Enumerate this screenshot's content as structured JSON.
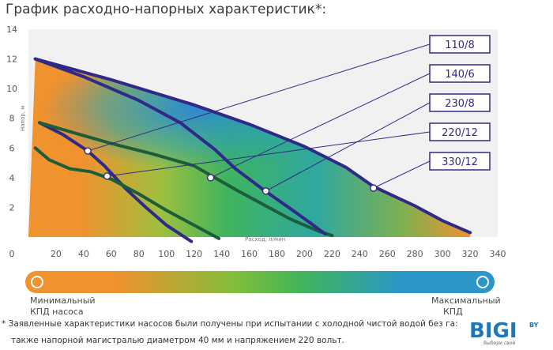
{
  "title": "График расходно-напорных характеристик*:",
  "chart_data": {
    "type": "line",
    "xlabel": "Расход, л/мин",
    "ylabel": "Напор, м",
    "xlim": [
      0,
      340
    ],
    "ylim": [
      0,
      14
    ],
    "x_ticks": [
      "20",
      "40",
      "60",
      "80",
      "100",
      "120",
      "140",
      "160",
      "180",
      "200",
      "220",
      "240",
      "260",
      "280",
      "300",
      "320",
      "340"
    ],
    "y_ticks": [
      "2",
      "4",
      "6",
      "8",
      "10",
      "12",
      "14"
    ],
    "origin_label": "0",
    "grid": false,
    "series": [
      {
        "name": "110/8",
        "color": "#2f2a87",
        "points": [
          [
            8,
            7.7
          ],
          [
            25,
            6.9
          ],
          [
            43,
            5.8
          ],
          [
            55,
            4.8
          ],
          [
            70,
            3.3
          ],
          [
            85,
            2.0
          ],
          [
            100,
            0.8
          ],
          [
            118,
            -0.3
          ]
        ],
        "marker": [
          43,
          5.8
        ]
      },
      {
        "name": "140/6",
        "color": "#1c5e3a",
        "points": [
          [
            8,
            7.7
          ],
          [
            30,
            7.1
          ],
          [
            60,
            6.3
          ],
          [
            90,
            5.6
          ],
          [
            120,
            4.8
          ],
          [
            135,
            4.0
          ],
          [
            150,
            3.2
          ],
          [
            170,
            2.2
          ],
          [
            190,
            1.2
          ],
          [
            210,
            0.4
          ],
          [
            220,
            0.1
          ]
        ],
        "marker": [
          132,
          4.0
        ]
      },
      {
        "name": "230/8",
        "color": "#2f2a87",
        "points": [
          [
            5,
            12.0
          ],
          [
            40,
            10.8
          ],
          [
            80,
            9.2
          ],
          [
            110,
            7.7
          ],
          [
            135,
            5.9
          ],
          [
            150,
            4.6
          ],
          [
            170,
            3.2
          ],
          [
            190,
            1.9
          ],
          [
            205,
            0.9
          ],
          [
            215,
            0.2
          ]
        ],
        "marker": [
          172,
          3.1
        ]
      },
      {
        "name": "220/12",
        "color": "#1c5e3a",
        "points": [
          [
            5,
            6.0
          ],
          [
            15,
            5.2
          ],
          [
            30,
            4.6
          ],
          [
            45,
            4.4
          ],
          [
            60,
            3.9
          ],
          [
            80,
            2.9
          ],
          [
            100,
            1.8
          ],
          [
            120,
            0.8
          ],
          [
            138,
            -0.1
          ]
        ],
        "marker": [
          57,
          4.1
        ]
      },
      {
        "name": "330/12",
        "color": "#2f2a87",
        "points": [
          [
            5,
            12.0
          ],
          [
            60,
            10.6
          ],
          [
            120,
            8.9
          ],
          [
            160,
            7.6
          ],
          [
            200,
            6.1
          ],
          [
            230,
            4.7
          ],
          [
            250,
            3.4
          ],
          [
            280,
            2.1
          ],
          [
            300,
            1.1
          ],
          [
            320,
            0.3
          ]
        ],
        "marker": [
          250,
          3.3
        ]
      }
    ],
    "legend": [
      "110/8",
      "140/6",
      "230/8",
      "220/12",
      "330/12"
    ],
    "legend_position": "right"
  },
  "efficiency_bar": {
    "min_label_line1": "Минимальный",
    "min_label_line2": "КПД насоса",
    "max_label_line1": "Максимальный",
    "max_label_line2": "КПД",
    "low_color": "#f0922e",
    "mid_color": "#45b45a",
    "high_color": "#2a97c8"
  },
  "footnote_line1": "* Заявленные характеристики насосов были получены при испытании с холодной чистой водой без га:",
  "footnote_line2": "также напорной магистралью диаметром 40 мм и напряжением 220 вольт.",
  "logo": {
    "text": "BIGI",
    "suffix": "BY",
    "tagline": "Выбери свой",
    "brand_color": "#1f77b8"
  }
}
